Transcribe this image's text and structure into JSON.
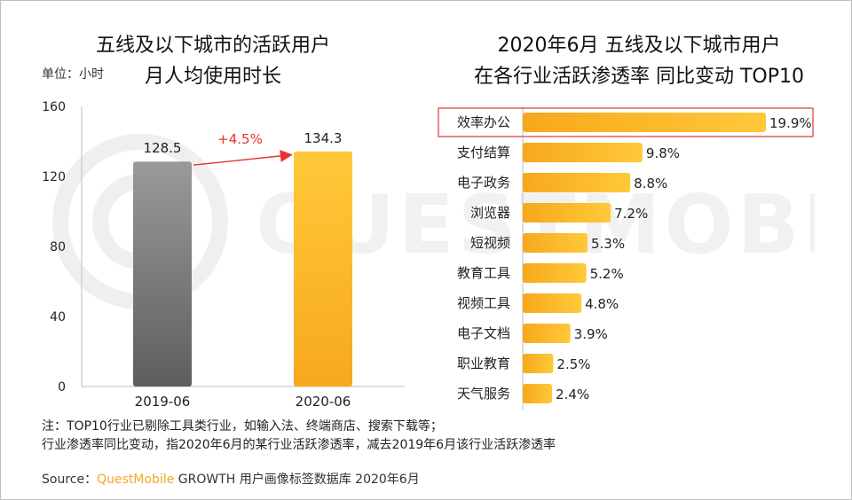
{
  "left_title_line1": "五线及以下城市的活跃用户",
  "left_title_line2": "月人均使用时长",
  "left_unit": "单位：小时",
  "right_title_line1": "2020年6月 五线及以下城市用户",
  "right_title_line2": "在各行业活跃渗透率 同比变动 TOP10",
  "notes": [
    "注：TOP10行业已剔除工具类行业，如输入法、终端商店、搜索下载等；",
    "行业渗透率同比变动，指2020年6月的某行业活跃渗透率，减去2019年6月该行业活跃渗透率"
  ],
  "source": {
    "label": "Source：",
    "brand": "QuestMobile",
    "text": " GROWTH 用户画像标签数据库 2020年6月"
  },
  "watermark_text": "QUESTMOBILE",
  "colors": {
    "gray_top": "#9a9a9a",
    "gray_bottom": "#5e5e5e",
    "orange_top": "#ffc93a",
    "orange_bottom": "#f7a81c",
    "growth_arrow": "#e8312f",
    "highlight_box": "#d9363e",
    "brand": "#f5a623"
  },
  "chart_data": [
    {
      "type": "bar",
      "title": "五线及以下城市的活跃用户 月人均使用时长",
      "ylabel": "单位：小时",
      "categories": [
        "2019-06",
        "2020-06"
      ],
      "values": [
        128.5,
        134.3
      ],
      "value_labels": [
        "128.5",
        "134.3"
      ],
      "ylim": [
        0,
        160
      ],
      "yticks": [
        0,
        40,
        80,
        120,
        160
      ],
      "annotation": "+4.5%",
      "grid": false
    },
    {
      "type": "bar",
      "orientation": "horizontal",
      "title": "2020年6月 五线及以下城市用户 在各行业活跃渗透率 同比变动 TOP10",
      "categories": [
        "效率办公",
        "支付结算",
        "电子政务",
        "浏览器",
        "短视频",
        "教育工具",
        "视频工具",
        "电子文档",
        "职业教育",
        "天气服务"
      ],
      "values": [
        19.9,
        9.8,
        8.8,
        7.2,
        5.3,
        5.2,
        4.8,
        3.9,
        2.5,
        2.4
      ],
      "value_labels": [
        "19.9%",
        "9.8%",
        "8.8%",
        "7.2%",
        "5.3%",
        "5.2%",
        "4.8%",
        "3.9%",
        "2.5%",
        "2.4%"
      ],
      "highlighted": "效率办公",
      "grid": false
    }
  ]
}
